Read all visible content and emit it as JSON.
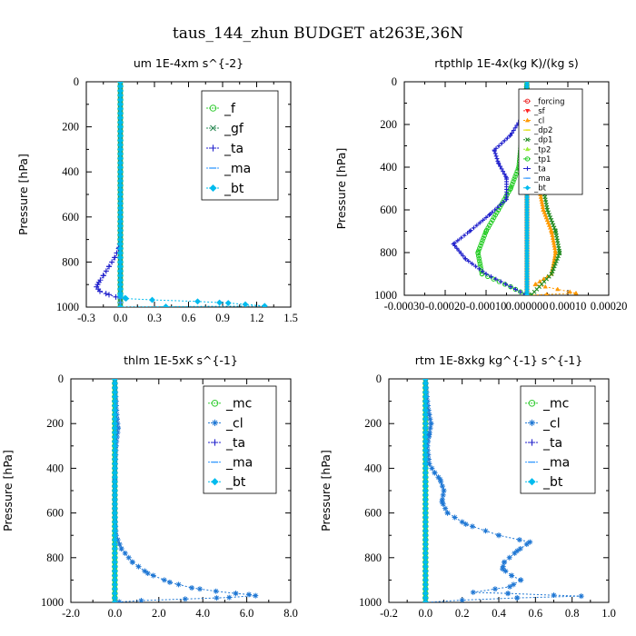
{
  "page_title": "taus_144_zhun  BUDGET at263E,36N",
  "chart_data": [
    {
      "type": "line",
      "title": "um  1E-4xm s^{-2}",
      "ylabel": "Pressure [hPa]",
      "xlim": [
        -0.3,
        1.5
      ],
      "ylim": [
        1000,
        0
      ],
      "x_ticks": [
        "-0.3",
        "0.0",
        "0.3",
        "0.6",
        "0.9",
        "1.2",
        "1.5"
      ],
      "y_ticks": [
        "0",
        "200",
        "400",
        "600",
        "800",
        "1000"
      ],
      "legend_position": "top-right",
      "series": [
        {
          "name": "_f",
          "color": "#33cc33",
          "marker": "circle",
          "points": [
            [
              0,
              0
            ],
            [
              0,
              100
            ],
            [
              0,
              200
            ],
            [
              0,
              300
            ],
            [
              0,
              400
            ],
            [
              0,
              500
            ],
            [
              0,
              600
            ],
            [
              0,
              700
            ],
            [
              0,
              800
            ],
            [
              0,
              900
            ],
            [
              0,
              1000
            ]
          ]
        },
        {
          "name": "_gf",
          "color": "#2e8b57",
          "marker": "x",
          "points": [
            [
              0,
              0
            ],
            [
              0,
              200
            ],
            [
              0,
              400
            ],
            [
              0,
              600
            ],
            [
              0,
              800
            ],
            [
              0,
              1000
            ]
          ]
        },
        {
          "name": "_ta",
          "color": "#2222cc",
          "marker": "plus",
          "points": [
            [
              0,
              0
            ],
            [
              0,
              200
            ],
            [
              0,
              400
            ],
            [
              0,
              600
            ],
            [
              0,
              700
            ],
            [
              -0.01,
              735
            ],
            [
              -0.05,
              780
            ],
            [
              -0.1,
              820
            ],
            [
              -0.15,
              860
            ],
            [
              -0.19,
              890
            ],
            [
              -0.21,
              910
            ],
            [
              -0.18,
              930
            ],
            [
              -0.1,
              945
            ],
            [
              -0.04,
              955
            ],
            [
              0,
              960
            ],
            [
              0,
              1000
            ]
          ]
        },
        {
          "name": "_ma",
          "color": "#3399ff",
          "marker": "dash",
          "points": [
            [
              0,
              0
            ],
            [
              0,
              500
            ],
            [
              0,
              1000
            ]
          ]
        },
        {
          "name": "_bt",
          "color": "#00bbee",
          "marker": "diamond",
          "points": [
            [
              0,
              0
            ],
            [
              0,
              950
            ],
            [
              0.05,
              962
            ],
            [
              0.28,
              968
            ],
            [
              0.68,
              975
            ],
            [
              0.95,
              982
            ],
            [
              1.1,
              988
            ],
            [
              1.27,
              995
            ],
            [
              0.4,
              998
            ],
            [
              0,
              1000
            ]
          ]
        }
      ]
    },
    {
      "type": "line",
      "title": "rtpthlp  1E-4x(kg K)/(kg s)",
      "ylabel": "Pressure [hPa]",
      "xlim": [
        -0.0003,
        0.0002
      ],
      "ylim": [
        1000,
        0
      ],
      "x_ticks": [
        "-0.00030",
        "-0.00020",
        "-0.00010",
        "0.000000",
        "0.00010",
        "0.00020"
      ],
      "y_ticks": [
        "0",
        "200",
        "400",
        "600",
        "800",
        "1000"
      ],
      "legend_position": "top-right",
      "series": [
        {
          "name": "_forcing",
          "color": "#ee3333",
          "marker": "circle",
          "points": [
            [
              0,
              0
            ],
            [
              0,
              1000
            ]
          ]
        },
        {
          "name": "_sf",
          "color": "#ff2222",
          "marker": "triangle-down",
          "points": [
            [
              0,
              0
            ],
            [
              0,
              1000
            ]
          ]
        },
        {
          "name": "_cl",
          "color": "#ff9900",
          "marker": "triangle-up",
          "points": [
            [
              0,
              0
            ],
            [
              1e-05,
              200
            ],
            [
              2e-05,
              400
            ],
            [
              3e-05,
              500
            ],
            [
              4e-05,
              600
            ],
            [
              6e-05,
              700
            ],
            [
              7e-05,
              800
            ],
            [
              6e-05,
              900
            ],
            [
              2e-05,
              950
            ],
            [
              0.00012,
              990
            ],
            [
              0,
              1000
            ]
          ]
        },
        {
          "name": "_dp2",
          "color": "#dddd00",
          "marker": "dash",
          "points": [
            [
              0,
              0
            ],
            [
              0,
              1000
            ]
          ]
        },
        {
          "name": "_dp1",
          "color": "#228b22",
          "marker": "x",
          "points": [
            [
              0,
              0
            ],
            [
              1e-05,
              200
            ],
            [
              3e-05,
              400
            ],
            [
              5e-05,
              600
            ],
            [
              7e-05,
              700
            ],
            [
              8e-05,
              800
            ],
            [
              6e-05,
              900
            ],
            [
              1e-05,
              1000
            ]
          ]
        },
        {
          "name": "_tp2",
          "color": "#99ee33",
          "marker": "triangle-up",
          "points": [
            [
              0,
              0
            ],
            [
              0,
              1000
            ]
          ]
        },
        {
          "name": "_tp1",
          "color": "#22cc22",
          "marker": "circle",
          "points": [
            [
              0,
              0
            ],
            [
              -2e-05,
              400
            ],
            [
              -4e-05,
              500
            ],
            [
              -7e-05,
              600
            ],
            [
              -0.0001,
              700
            ],
            [
              -0.00012,
              800
            ],
            [
              -0.00011,
              900
            ],
            [
              -4e-05,
              960
            ],
            [
              0,
              1000
            ]
          ]
        },
        {
          "name": "_ta",
          "color": "#2222cc",
          "marker": "plus",
          "points": [
            [
              0,
              0
            ],
            [
              -1e-05,
              160
            ],
            [
              -4e-05,
              250
            ],
            [
              -8e-05,
              320
            ],
            [
              -7e-05,
              380
            ],
            [
              -5e-05,
              450
            ],
            [
              -5e-05,
              550
            ],
            [
              -9e-05,
              620
            ],
            [
              -0.00014,
              700
            ],
            [
              -0.00018,
              760
            ],
            [
              -0.00015,
              830
            ],
            [
              -0.0001,
              900
            ],
            [
              -4e-05,
              960
            ],
            [
              0,
              1000
            ]
          ]
        },
        {
          "name": "_ma",
          "color": "#3399ff",
          "marker": "dash",
          "points": [
            [
              0,
              0
            ],
            [
              0,
              1000
            ]
          ]
        },
        {
          "name": "_bt",
          "color": "#00bbee",
          "marker": "diamond",
          "points": [
            [
              0,
              0
            ],
            [
              0,
              1000
            ]
          ]
        }
      ]
    },
    {
      "type": "line",
      "title": "thlm  1E-5xK s^{-1}",
      "ylabel": "Pressure [hPa]",
      "xlim": [
        -2.0,
        8.0
      ],
      "ylim": [
        1000,
        0
      ],
      "x_ticks": [
        "-2.0",
        "0.0",
        "2.0",
        "4.0",
        "6.0",
        "8.0"
      ],
      "y_ticks": [
        "0",
        "200",
        "400",
        "600",
        "800",
        "1000"
      ],
      "legend_position": "top-right",
      "series": [
        {
          "name": "_mc",
          "color": "#33cc33",
          "marker": "circle",
          "points": [
            [
              0,
              0
            ],
            [
              0,
              100
            ],
            [
              0,
              200
            ],
            [
              0,
              300
            ],
            [
              0,
              400
            ],
            [
              0,
              500
            ],
            [
              0,
              600
            ],
            [
              0,
              700
            ],
            [
              0,
              800
            ],
            [
              0,
              900
            ],
            [
              0,
              1000
            ]
          ]
        },
        {
          "name": "_cl",
          "color": "#1f77d4",
          "marker": "star",
          "points": [
            [
              0,
              0
            ],
            [
              0.05,
              100
            ],
            [
              0.1,
              180
            ],
            [
              0.15,
              220
            ],
            [
              0.05,
              300
            ],
            [
              0,
              450
            ],
            [
              0,
              600
            ],
            [
              0.05,
              700
            ],
            [
              0.3,
              760
            ],
            [
              0.8,
              820
            ],
            [
              1.5,
              870
            ],
            [
              2.5,
              910
            ],
            [
              3.5,
              935
            ],
            [
              4.6,
              950
            ],
            [
              5.5,
              960
            ],
            [
              6.1,
              965
            ],
            [
              6.4,
              970
            ],
            [
              5.2,
              978
            ],
            [
              3.2,
              985
            ],
            [
              1.2,
              992
            ],
            [
              0.2,
              998
            ],
            [
              0,
              1000
            ]
          ]
        },
        {
          "name": "_ta",
          "color": "#2222cc",
          "marker": "plus",
          "points": [
            [
              0,
              0
            ],
            [
              0,
              500
            ],
            [
              0,
              1000
            ]
          ]
        },
        {
          "name": "_ma",
          "color": "#3399ff",
          "marker": "dash",
          "points": [
            [
              0,
              0
            ],
            [
              0,
              500
            ],
            [
              0,
              1000
            ]
          ]
        },
        {
          "name": "_bt",
          "color": "#00bbee",
          "marker": "diamond",
          "points": [
            [
              0,
              0
            ],
            [
              0,
              1000
            ]
          ]
        }
      ]
    },
    {
      "type": "line",
      "title": "rtm  1E-8xkg kg^{-1} s^{-1}",
      "ylabel": "Pressure [hPa]",
      "xlim": [
        -0.2,
        1.0
      ],
      "ylim": [
        1000,
        0
      ],
      "x_ticks": [
        "-0.2",
        "0.0",
        "0.2",
        "0.4",
        "0.6",
        "0.8",
        "1.0"
      ],
      "y_ticks": [
        "0",
        "200",
        "400",
        "600",
        "800",
        "1000"
      ],
      "legend_position": "top-right",
      "series": [
        {
          "name": "_mc",
          "color": "#33cc33",
          "marker": "circle",
          "points": [
            [
              0,
              0
            ],
            [
              0,
              100
            ],
            [
              0,
              200
            ],
            [
              0,
              300
            ],
            [
              0,
              400
            ],
            [
              0,
              500
            ],
            [
              0,
              600
            ],
            [
              0,
              700
            ],
            [
              0,
              800
            ],
            [
              0,
              900
            ],
            [
              0,
              1000
            ]
          ]
        },
        {
          "name": "_cl",
          "color": "#1f77d4",
          "marker": "star",
          "points": [
            [
              0,
              0
            ],
            [
              0.01,
              100
            ],
            [
              0.02,
              160
            ],
            [
              0.03,
              200
            ],
            [
              0.02,
              250
            ],
            [
              0.01,
              300
            ],
            [
              0.02,
              380
            ],
            [
              0.05,
              420
            ],
            [
              0.08,
              450
            ],
            [
              0.1,
              500
            ],
            [
              0.09,
              550
            ],
            [
              0.12,
              600
            ],
            [
              0.22,
              650
            ],
            [
              0.4,
              700
            ],
            [
              0.57,
              730
            ],
            [
              0.5,
              770
            ],
            [
              0.43,
              820
            ],
            [
              0.42,
              850
            ],
            [
              0.47,
              880
            ],
            [
              0.52,
              900
            ],
            [
              0.46,
              930
            ],
            [
              0.26,
              955
            ],
            [
              0.45,
              960
            ],
            [
              0.7,
              968
            ],
            [
              0.85,
              972
            ],
            [
              0.5,
              980
            ],
            [
              0.2,
              990
            ],
            [
              0,
              1000
            ]
          ]
        },
        {
          "name": "_ta",
          "color": "#2222cc",
          "marker": "plus",
          "points": [
            [
              0,
              0
            ],
            [
              0,
              500
            ],
            [
              0,
              1000
            ]
          ]
        },
        {
          "name": "_ma",
          "color": "#3399ff",
          "marker": "dash",
          "points": [
            [
              0,
              0
            ],
            [
              0,
              500
            ],
            [
              0,
              1000
            ]
          ]
        },
        {
          "name": "_bt",
          "color": "#00bbee",
          "marker": "diamond",
          "points": [
            [
              0,
              0
            ],
            [
              0,
              1000
            ]
          ]
        }
      ]
    }
  ]
}
